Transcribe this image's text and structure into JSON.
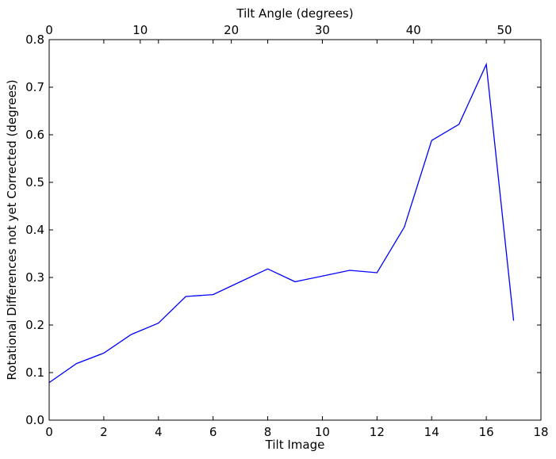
{
  "chart_data": {
    "type": "line",
    "title": "",
    "xlabel": "Tilt Image",
    "ylabel": "Rotational Differences not yet Corrected (degrees)",
    "x2label": "Tilt Angle (degrees)",
    "xlim": [
      0,
      18
    ],
    "ylim": [
      0.0,
      0.8
    ],
    "x2lim": [
      0,
      54
    ],
    "xticks": [
      "0",
      "2",
      "4",
      "6",
      "8",
      "10",
      "12",
      "14",
      "16",
      "18"
    ],
    "yticks": [
      "0.0",
      "0.1",
      "0.2",
      "0.3",
      "0.4",
      "0.5",
      "0.6",
      "0.7",
      "0.8"
    ],
    "x2ticks": [
      "0",
      "10",
      "20",
      "30",
      "40",
      "50"
    ],
    "grid": false,
    "series": [
      {
        "color": "#0000ff",
        "x": [
          0,
          1,
          2,
          3,
          4,
          5,
          6,
          7,
          8,
          9,
          10,
          11,
          12,
          13,
          14,
          15,
          16,
          17
        ],
        "y": [
          0.079,
          0.119,
          0.141,
          0.18,
          0.204,
          0.26,
          0.264,
          0.291,
          0.318,
          0.291,
          0.303,
          0.315,
          0.31,
          0.406,
          0.588,
          0.622,
          0.748,
          0.209
        ]
      }
    ]
  }
}
